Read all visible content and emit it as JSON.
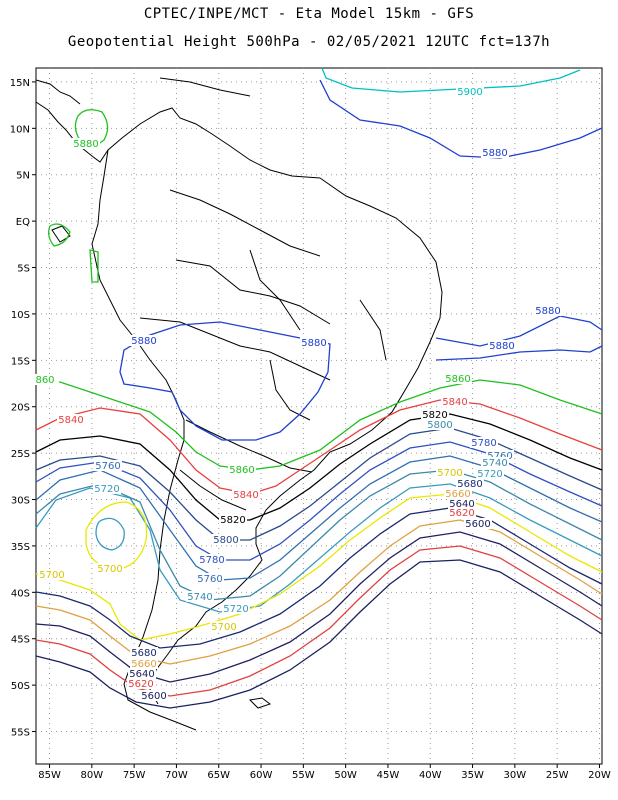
{
  "header": {
    "title_line1": "CPTEC/INPE/MCT -  Eta Model 15km - GFS",
    "title_line2": "Geopotential Height 500hPa - 02/05/2021 12UTC fct=137h"
  },
  "map": {
    "lat_ticks": [
      "15N",
      "10N",
      "5N",
      "EQ",
      "5S",
      "10S",
      "15S",
      "20S",
      "25S",
      "30S",
      "35S",
      "40S",
      "45S",
      "50S",
      "55S"
    ],
    "lon_ticks": [
      "85W",
      "80W",
      "75W",
      "70W",
      "65W",
      "60W",
      "55W",
      "50W",
      "45W",
      "40W",
      "35W",
      "30W",
      "25W",
      "20W"
    ],
    "contour_colors": {
      "5900": "#00c0c0",
      "5880": "#2040d0",
      "5860": "#20c020",
      "5840": "#e84040",
      "5820": "#000000",
      "5800": "#2a4a8a",
      "5780": "#3050c0",
      "5760": "#3070b0",
      "5740": "#3a8aaa",
      "5720": "#3a9ac0",
      "5700": "#e8e800",
      "5680": "#1a2a70",
      "5660": "#e0a040",
      "5640": "#202060",
      "5620": "#e04040",
      "5600": "#1a2060"
    },
    "contour_labels": [
      {
        "text": "5900",
        "color": "#00c0c0"
      },
      {
        "text": "5880",
        "color": "#2040d0"
      },
      {
        "text": "5880",
        "color": "#2040d0"
      },
      {
        "text": "5880",
        "color": "#2040d0"
      },
      {
        "text": "5880",
        "color": "#2040d0"
      },
      {
        "text": "5880",
        "color": "#2040d0"
      },
      {
        "text": "5880",
        "color": "#20c020"
      },
      {
        "text": "860",
        "color": "#20c020"
      },
      {
        "text": "5860",
        "color": "#20c020"
      },
      {
        "text": "5860",
        "color": "#20c020"
      },
      {
        "text": "5840",
        "color": "#e84040"
      },
      {
        "text": "5840",
        "color": "#e84040"
      },
      {
        "text": "5840",
        "color": "#e84040"
      },
      {
        "text": "5820",
        "color": "#000000"
      },
      {
        "text": "5820",
        "color": "#000000"
      },
      {
        "text": "5800",
        "color": "#3a8aaa"
      },
      {
        "text": "5800",
        "color": "#2a4a8a"
      },
      {
        "text": "5780",
        "color": "#3050c0"
      },
      {
        "text": "5780",
        "color": "#3050c0"
      },
      {
        "text": "5760",
        "color": "#3070b0"
      },
      {
        "text": "5760",
        "color": "#3070b0"
      },
      {
        "text": "5760",
        "color": "#3070b0"
      },
      {
        "text": "5740",
        "color": "#3a8aaa"
      },
      {
        "text": "5740",
        "color": "#3a8aaa"
      },
      {
        "text": "5720",
        "color": "#3a9ac0"
      },
      {
        "text": "5720",
        "color": "#3a9ac0"
      },
      {
        "text": "5720",
        "color": "#3a9ac0"
      },
      {
        "text": "5700",
        "color": "#d8c800"
      },
      {
        "text": "5700",
        "color": "#d8c800"
      },
      {
        "text": "5700",
        "color": "#d8c800"
      },
      {
        "text": "5700",
        "color": "#d8c800"
      },
      {
        "text": "5680",
        "color": "#1a2a70"
      },
      {
        "text": "5680",
        "color": "#1a2a70"
      },
      {
        "text": "5660",
        "color": "#e0a040"
      },
      {
        "text": "5660",
        "color": "#e0a040"
      },
      {
        "text": "5640",
        "color": "#202060"
      },
      {
        "text": "5640",
        "color": "#202060"
      },
      {
        "text": "5620",
        "color": "#e04040"
      },
      {
        "text": "5620",
        "color": "#e04040"
      },
      {
        "text": "5600",
        "color": "#1a2060"
      },
      {
        "text": "5600",
        "color": "#1a2060"
      }
    ]
  }
}
